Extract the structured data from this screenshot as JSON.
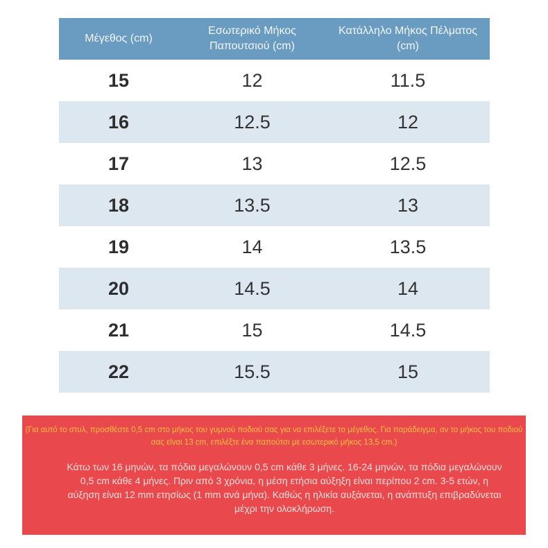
{
  "table": {
    "headers": [
      "Μέγεθος (cm)",
      "Εσωτερικό Μήκος Παπουτσιού (cm)",
      "Κατάλληλο Μήκος Πέλματος (cm)"
    ],
    "rows": [
      [
        "15",
        "12",
        "11.5"
      ],
      [
        "16",
        "12.5",
        "12"
      ],
      [
        "17",
        "13",
        "12.5"
      ],
      [
        "18",
        "13.5",
        "13"
      ],
      [
        "19",
        "14",
        "13.5"
      ],
      [
        "20",
        "14.5",
        "14"
      ],
      [
        "21",
        "15",
        "14.5"
      ],
      [
        "22",
        "15.5",
        "15"
      ]
    ]
  },
  "notice": {
    "highlight": "(Για αυτό το στυλ, προσθέστε 0,5 cm στο μήκος του γυμνού ποδιού σας για να επιλέξετε το μέγεθος. Για παράδειγμα, αν το μήκος του ποδιού σας είναι 13 cm, επιλέξτε ένα παπούτσι με εσωτερικό μήκος 13,5 cm.)",
    "body": "Κάτω των 16 μηνών, τα πόδια μεγαλώνουν 0,5 cm κάθε 3 μήνες. 16-24 μηνών, τα πόδια μεγαλώνουν 0,5 cm κάθε 4 μήνες. Πριν από 3 χρόνια, η μέση ετήσια αύξηξη είναι περίπου 2 cm. 3-5 ετών, η αύξηση είναι 12 mm ετησίως (1 mm ανά μήνα). Καθώς η ηλικία αυξάνεται, η ανάπτυξη επιβραδύνεται μέχρι την ολοκλήρωση."
  },
  "colors": {
    "header_bg": "#6a9bc0",
    "row_alt_bg": "#dde7f0",
    "notice_bg": "#e9494d",
    "highlight_text": "#ffc23b"
  }
}
